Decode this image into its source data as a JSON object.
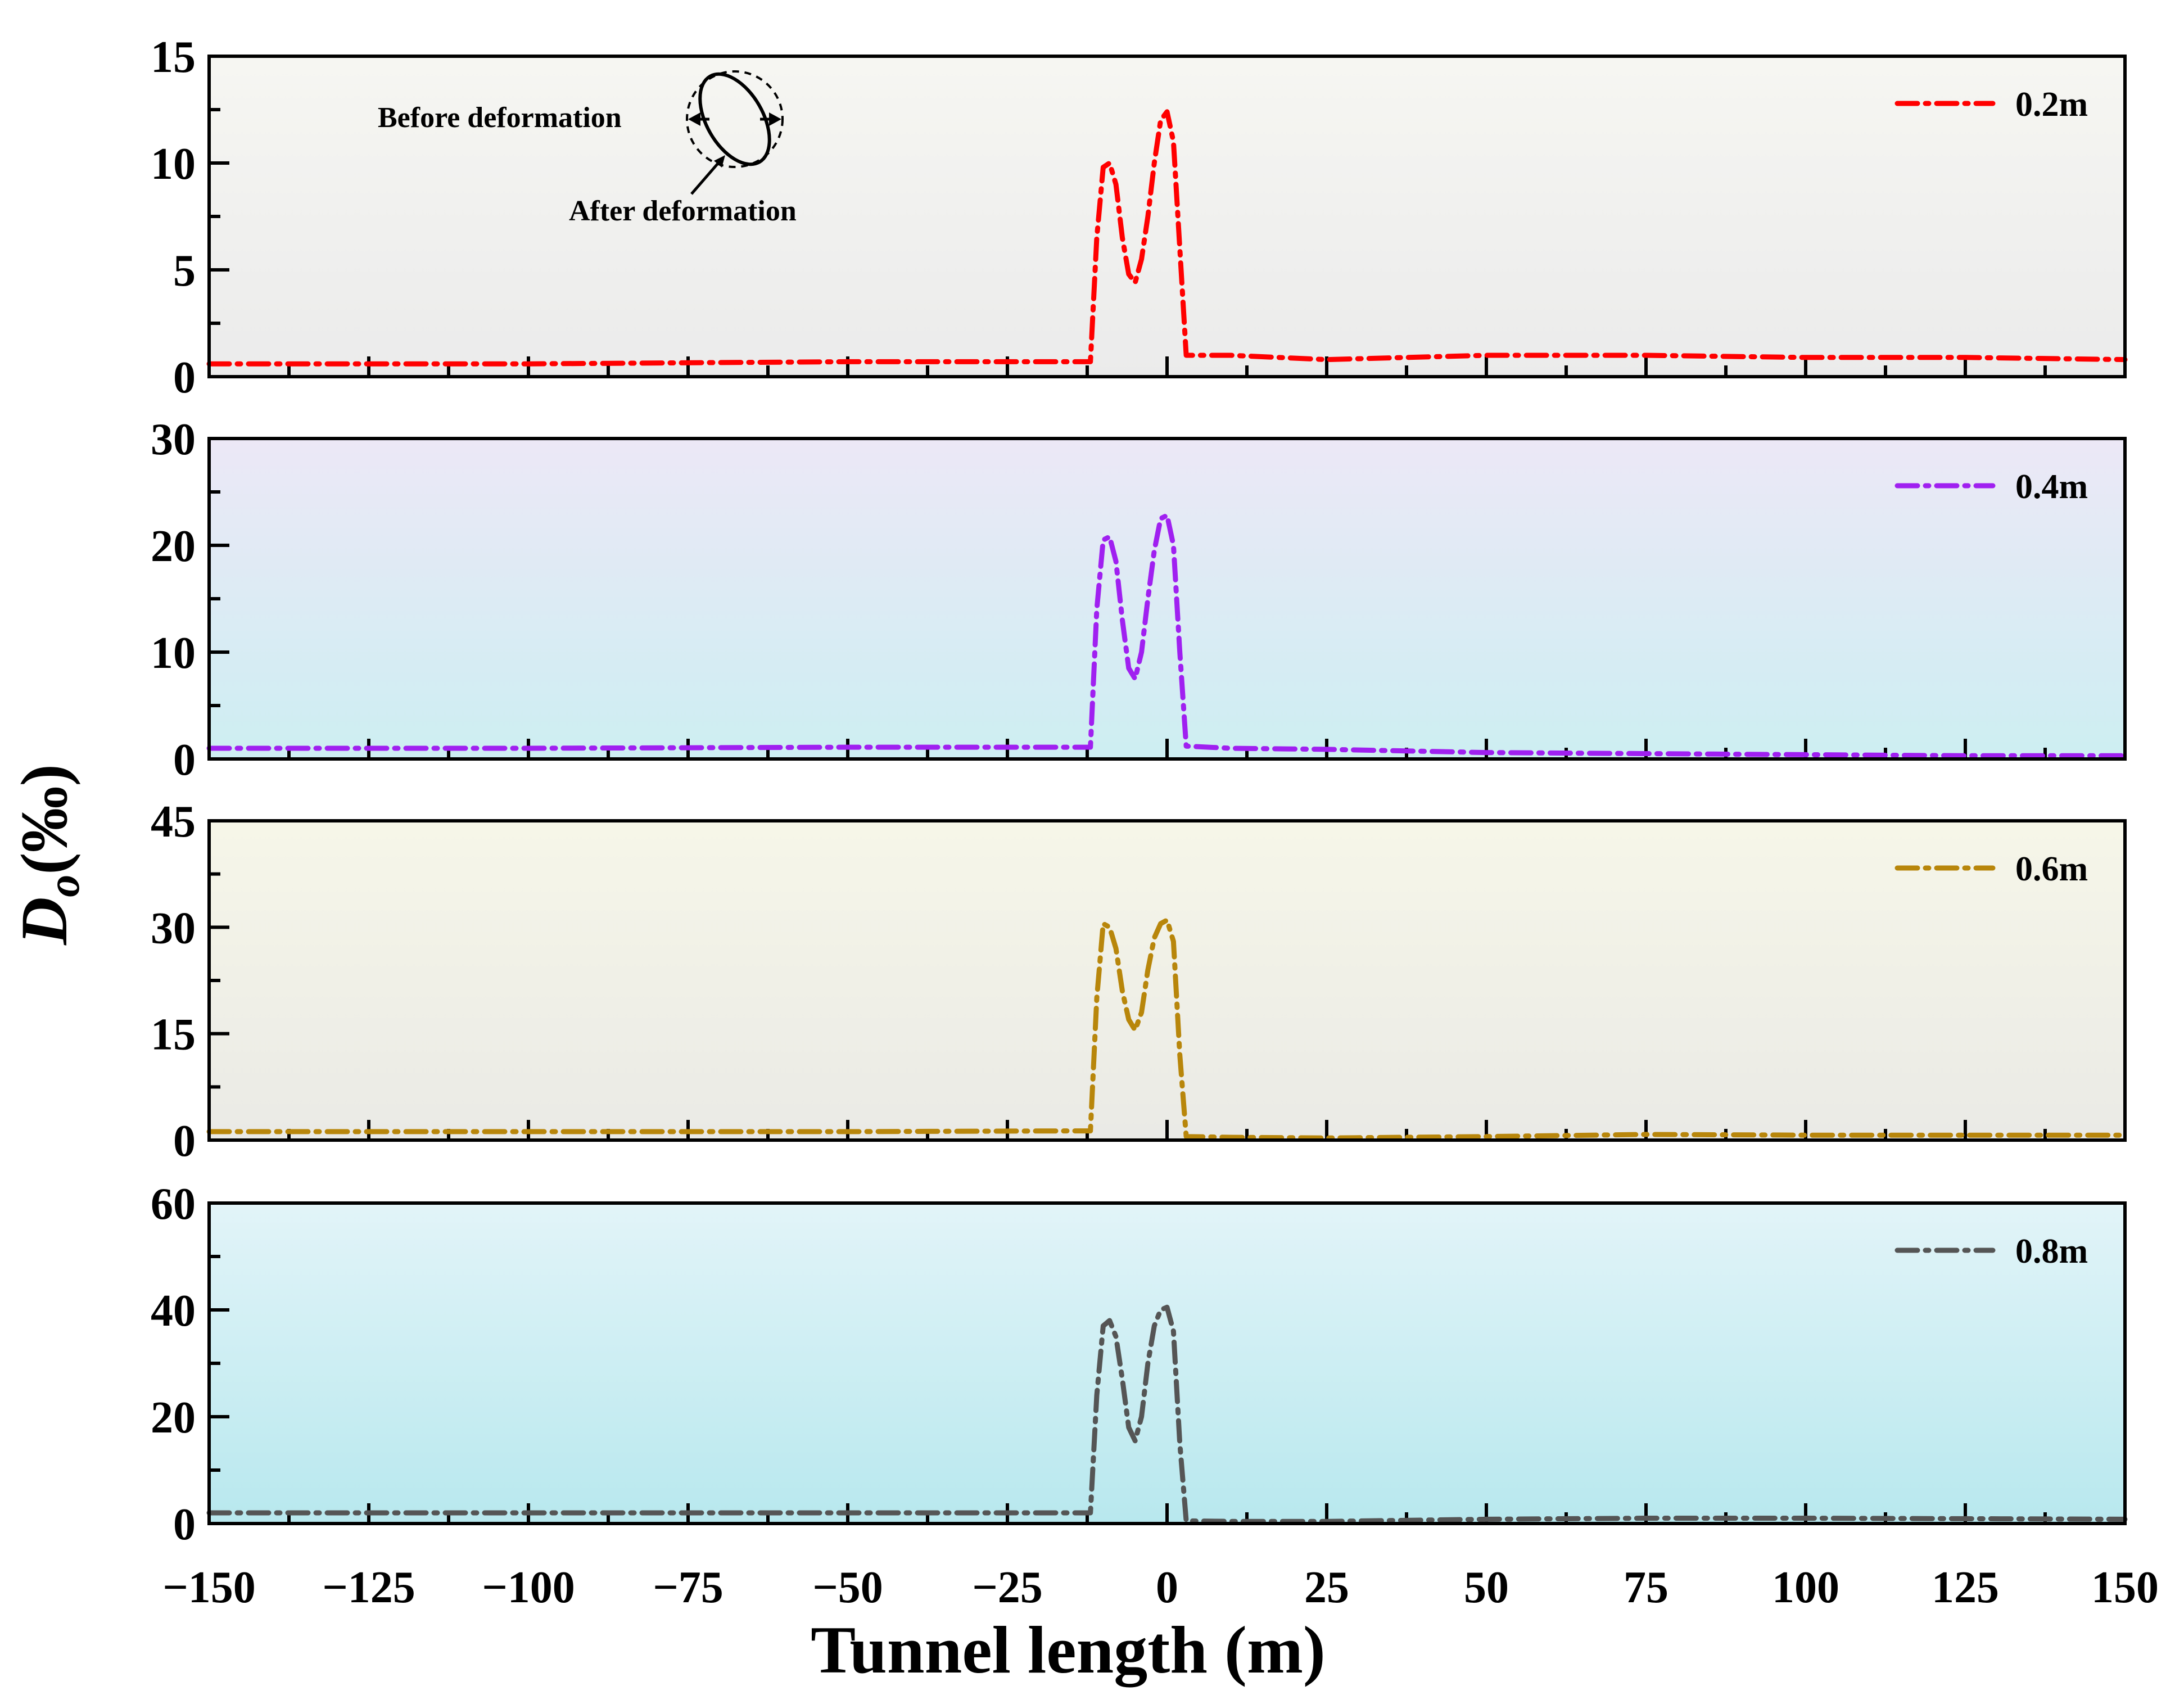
{
  "chart_data": {
    "type": "line",
    "xlabel": "Tunnel length (m)",
    "ylabel": {
      "main": "D",
      "sub": "o",
      "unit": "(‰)"
    },
    "xlim": [
      -150,
      150
    ],
    "xticks": [
      -150,
      -125,
      -100,
      -75,
      -50,
      -25,
      0,
      25,
      50,
      75,
      100,
      125,
      150
    ],
    "xtick_labels": [
      "−150",
      "−125",
      "−100",
      "−75",
      "−50",
      "−25",
      "0",
      "25",
      "50",
      "75",
      "100",
      "125",
      "150"
    ],
    "annotation": {
      "before": "Before deformation",
      "after": "After deformation"
    },
    "panels": [
      {
        "name": "0.2m",
        "color": "#ff0000",
        "bg_top": "#f6f6f2",
        "bg_bottom": "#ebebeb",
        "ylim": [
          0,
          15
        ],
        "yticks": [
          0,
          5,
          10,
          15
        ],
        "x": [
          -150,
          -100,
          -50,
          -15,
          -12,
          -11,
          -10,
          -9,
          -8,
          -7,
          -6,
          -5,
          -4,
          -3,
          -2,
          -1,
          0,
          1,
          2,
          3,
          10,
          25,
          50,
          75,
          100,
          125,
          150
        ],
        "y": [
          0.6,
          0.6,
          0.7,
          0.7,
          0.7,
          6.5,
          9.8,
          10.0,
          9.0,
          6.5,
          4.8,
          4.4,
          5.5,
          7.5,
          10.0,
          12.0,
          12.4,
          11.0,
          6.0,
          1.0,
          1.0,
          0.8,
          1.0,
          1.0,
          0.9,
          0.9,
          0.8
        ]
      },
      {
        "name": "0.4m",
        "color": "#a020f0",
        "bg_top": "#ece8f6",
        "bg_bottom": "#cdeef2",
        "ylim": [
          0,
          30
        ],
        "yticks": [
          0,
          10,
          20,
          30
        ],
        "x": [
          -150,
          -100,
          -50,
          -15,
          -12,
          -11,
          -10,
          -9,
          -8,
          -7,
          -6,
          -5,
          -4,
          -3,
          -2,
          -1,
          0,
          1,
          2,
          3,
          10,
          25,
          50,
          75,
          100,
          125,
          150
        ],
        "y": [
          1.0,
          1.0,
          1.1,
          1.1,
          1.1,
          14.0,
          20.5,
          20.8,
          18.5,
          13.0,
          8.5,
          7.5,
          10.0,
          15.0,
          19.5,
          22.5,
          22.8,
          20.0,
          10.0,
          1.2,
          1.0,
          0.9,
          0.6,
          0.5,
          0.4,
          0.3,
          0.3
        ]
      },
      {
        "name": "0.6m",
        "color": "#b8860b",
        "bg_top": "#f6f6e8",
        "bg_bottom": "#eaeae6",
        "ylim": [
          0,
          45
        ],
        "yticks": [
          0,
          15,
          30,
          45
        ],
        "x": [
          -150,
          -100,
          -50,
          -15,
          -12,
          -11,
          -10,
          -9,
          -8,
          -7,
          -6,
          -5,
          -4,
          -3,
          -2,
          -1,
          0,
          1,
          2,
          3,
          10,
          25,
          50,
          75,
          100,
          125,
          150
        ],
        "y": [
          1.2,
          1.2,
          1.2,
          1.3,
          1.3,
          20.0,
          30.5,
          30.0,
          27.0,
          21.0,
          17.0,
          15.5,
          18.0,
          24.0,
          28.5,
          30.5,
          31.0,
          28.0,
          12.0,
          0.5,
          0.4,
          0.3,
          0.5,
          0.8,
          0.7,
          0.7,
          0.7
        ]
      },
      {
        "name": "0.8m",
        "color": "#555555",
        "bg_top": "#e2f4f8",
        "bg_bottom": "#b8e8ee",
        "ylim": [
          0,
          60
        ],
        "yticks": [
          0,
          20,
          40,
          60
        ],
        "x": [
          -150,
          -100,
          -50,
          -15,
          -12,
          -11,
          -10,
          -9,
          -8,
          -7,
          -6,
          -5,
          -4,
          -3,
          -2,
          -1,
          0,
          1,
          2,
          3,
          10,
          25,
          50,
          75,
          100,
          125,
          150
        ],
        "y": [
          2.0,
          2.0,
          2.0,
          2.0,
          2.0,
          24.0,
          37.0,
          38.0,
          35.0,
          27.0,
          18.0,
          15.5,
          20.0,
          30.0,
          37.0,
          40.0,
          40.5,
          36.0,
          15.0,
          0.5,
          0.4,
          0.4,
          0.8,
          1.0,
          1.0,
          0.9,
          0.8
        ]
      }
    ]
  }
}
